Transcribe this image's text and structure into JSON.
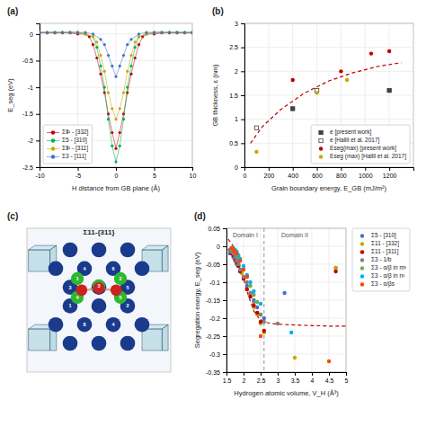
{
  "chart_data": [
    {
      "type": "line",
      "title": "(a)",
      "xlabel": "H distance from GB plane (Å)",
      "ylabel": "E_seg (eV)",
      "xlim": [
        -10,
        10
      ],
      "ylim": [
        -2.5,
        0.2
      ],
      "xticks": [
        -10,
        -5,
        0,
        5,
        10
      ],
      "yticks": [
        -2.5,
        -2,
        -1.5,
        -1,
        -0.5,
        0
      ],
      "grid": true,
      "legend": "lower left",
      "series": [
        {
          "name": "ΣⅡ¹ - [332]",
          "color": "#c00000",
          "marker": "circle",
          "x": [
            -10,
            -9,
            -8,
            -7,
            -6,
            -5,
            -4,
            -3.5,
            -3,
            -2.5,
            -2,
            -1.5,
            -1,
            -0.5,
            0,
            0.5,
            1,
            1.5,
            2,
            2.5,
            3,
            3.5,
            4,
            5,
            6,
            7,
            8,
            9,
            10
          ],
          "values": [
            0.02,
            0.02,
            0.02,
            0.02,
            0.02,
            0.0,
            0.0,
            -0.05,
            -0.2,
            -0.45,
            -0.75,
            -1.1,
            -1.5,
            -1.85,
            -2.15,
            -1.85,
            -1.5,
            -1.1,
            -0.75,
            -0.45,
            -0.2,
            -0.05,
            0.0,
            0.0,
            0.02,
            0.02,
            0.02,
            0.02,
            0.02
          ]
        },
        {
          "name": "Σ5 - [310]",
          "color": "#00b050",
          "marker": "circle",
          "x": [
            -10,
            -9,
            -8,
            -7,
            -6,
            -5,
            -4,
            -3,
            -2.5,
            -2,
            -1.5,
            -1,
            -0.5,
            0,
            0.5,
            1,
            1.5,
            2,
            2.5,
            3,
            4,
            5,
            6,
            7,
            8,
            9,
            10
          ],
          "values": [
            0.03,
            0.03,
            0.03,
            0.03,
            0.03,
            0.03,
            0.0,
            -0.05,
            -0.25,
            -0.6,
            -1.0,
            -1.6,
            -2.1,
            -2.4,
            -2.1,
            -1.6,
            -1.0,
            -0.6,
            -0.25,
            -0.05,
            0.0,
            0.03,
            0.03,
            0.03,
            0.03,
            0.03,
            0.03
          ]
        },
        {
          "name": "ΣⅡ¹ - [311]",
          "color": "#c8a800",
          "marker": "circle",
          "x": [
            -10,
            -9,
            -8,
            -7,
            -6,
            -5,
            -4,
            -3,
            -2.5,
            -2,
            -1.5,
            -1,
            -0.5,
            0,
            0.5,
            1,
            1.5,
            2,
            2.5,
            3,
            4,
            5,
            6,
            7,
            8,
            9,
            10
          ],
          "values": [
            0.03,
            0.03,
            0.03,
            0.03,
            0.03,
            0.03,
            0.0,
            -0.05,
            -0.15,
            -0.4,
            -0.7,
            -1.1,
            -1.4,
            -1.6,
            -1.4,
            -1.1,
            -0.7,
            -0.4,
            -0.15,
            -0.05,
            0.0,
            0.03,
            0.03,
            0.03,
            0.03,
            0.03,
            0.03
          ]
        },
        {
          "name": "Σ3 - [111]",
          "color": "#4472c4",
          "marker": "circle",
          "x": [
            -10,
            -9,
            -8,
            -7,
            -6,
            -5,
            -4,
            -3,
            -2,
            -1.5,
            -1,
            -0.5,
            0,
            0.5,
            1,
            1.5,
            2,
            3,
            4,
            5,
            6,
            7,
            8,
            9,
            10
          ],
          "values": [
            0.03,
            0.03,
            0.03,
            0.03,
            0.03,
            0.03,
            0.03,
            0.0,
            -0.1,
            -0.2,
            -0.4,
            -0.6,
            -0.8,
            -0.6,
            -0.4,
            -0.2,
            -0.1,
            0.0,
            0.03,
            0.03,
            0.03,
            0.03,
            0.03,
            0.03,
            0.03
          ]
        }
      ]
    },
    {
      "type": "scatter",
      "title": "(b)",
      "xlabel": "Grain boundary energy, E_GB (mJ/m²)",
      "ylabel": "GB thickness, ε (nm)",
      "xlim": [
        0,
        1400
      ],
      "ylim": [
        0,
        3
      ],
      "xticks": [
        0,
        200,
        400,
        600,
        800,
        1000,
        1200
      ],
      "yticks": [
        0,
        0.5,
        1,
        1.5,
        2,
        2.5,
        3
      ],
      "grid": true,
      "legend": "lower right",
      "series": [
        {
          "type": "line",
          "color": "#c00000",
          "line_style": "dashed",
          "x": [
            50,
            150,
            300,
            500,
            700,
            900,
            1100,
            1300
          ],
          "values": [
            0.5,
            0.85,
            1.2,
            1.55,
            1.8,
            1.97,
            2.1,
            2.18
          ]
        },
        {
          "name": "e [present work]",
          "color": "#404040",
          "marker": "square",
          "x": [
            400,
            1200
          ],
          "values": [
            1.22,
            1.6
          ]
        },
        {
          "name": "e [Hallil et al. 2017]",
          "color": "#404040",
          "marker": "square-open",
          "x": [
            100,
            600
          ],
          "values": [
            0.82,
            1.6
          ]
        },
        {
          "name": "Eseg(max) [present work]",
          "color": "#c00000",
          "marker": "circle",
          "x": [
            400,
            800,
            1050,
            1200
          ],
          "values": [
            1.82,
            2.0,
            2.37,
            2.42
          ]
        },
        {
          "name": "Eseg (max) [Hallil et al. 2017]",
          "color": "#c8a800",
          "marker": "circle",
          "x": [
            100,
            600,
            850
          ],
          "values": [
            0.32,
            1.55,
            1.82
          ]
        }
      ]
    },
    {
      "type": "diagram",
      "title": "(c)",
      "subtitle": "Σ11-{311}",
      "colors": [
        "#1a3a8c",
        "#2db82d",
        "#cc2222"
      ],
      "annotations": [
        "1",
        "2",
        "3",
        "4",
        "5",
        "4",
        "6",
        "3",
        "5",
        "1",
        "2",
        "8",
        "4"
      ]
    },
    {
      "type": "scatter",
      "title": "(d)",
      "xlabel": "Hydrogen atomic volume, V_H (Å³)",
      "ylabel": "Segregation energy, E_seg (eV)",
      "xlim": [
        1.5,
        5
      ],
      "ylim": [
        -0.35,
        0.05
      ],
      "xticks": [
        1.5,
        2,
        2.5,
        3,
        3.5,
        4,
        4.5,
        5
      ],
      "yticks": [
        -0.35,
        -0.3,
        -0.25,
        -0.2,
        -0.15,
        -0.1,
        -0.05,
        0,
        0.05
      ],
      "grid": true,
      "legend": "right",
      "vlines": [
        2.6
      ],
      "annotations": [
        {
          "text": "Domain I",
          "x": 2.05,
          "y": 0.04
        },
        {
          "text": "Domain II",
          "x": 3.5,
          "y": 0.04
        }
      ],
      "series": [
        {
          "type": "line",
          "color": "#c00000",
          "line_style": "dashed",
          "x": [
            1.55,
            1.7,
            1.85,
            2.0,
            2.15,
            2.3,
            2.45,
            2.6,
            2.8,
            3.2,
            3.8,
            4.5,
            5.0
          ],
          "values": [
            0.02,
            0.0,
            -0.04,
            -0.09,
            -0.14,
            -0.18,
            -0.2,
            -0.21,
            -0.215,
            -0.218,
            -0.22,
            -0.222,
            -0.222
          ]
        },
        {
          "name": "Σ5 - [310]",
          "color": "#4472c4",
          "marker": "circle",
          "x": [
            1.6,
            1.7,
            1.75,
            1.8,
            1.85,
            1.9,
            2.0,
            2.1,
            2.2,
            2.3,
            2.4,
            2.5,
            2.6,
            3.2,
            4.7
          ],
          "values": [
            -0.02,
            -0.03,
            -0.04,
            -0.05,
            -0.055,
            -0.07,
            -0.09,
            -0.11,
            -0.13,
            -0.15,
            -0.17,
            -0.19,
            -0.2,
            -0.13,
            -0.06
          ]
        },
        {
          "name": "Σ11 - [332]",
          "color": "#c8a800",
          "marker": "circle",
          "x": [
            1.6,
            1.65,
            1.7,
            1.75,
            1.8,
            1.85,
            1.9,
            1.95,
            2.0,
            2.1,
            2.2,
            2.3,
            2.4,
            2.5,
            2.6,
            3.5,
            4.7
          ],
          "values": [
            -0.01,
            -0.015,
            -0.02,
            -0.03,
            -0.04,
            -0.05,
            -0.065,
            -0.075,
            -0.09,
            -0.12,
            -0.14,
            -0.17,
            -0.19,
            -0.215,
            -0.24,
            -0.31,
            -0.06
          ]
        },
        {
          "name": "Σ11 - [311]",
          "color": "#c00000",
          "marker": "circle",
          "x": [
            1.6,
            1.65,
            1.7,
            1.75,
            1.8,
            1.85,
            1.9,
            2.0,
            2.1,
            2.2,
            2.3,
            2.4,
            2.5,
            2.6,
            4.7
          ],
          "values": [
            -0.01,
            -0.02,
            -0.025,
            -0.035,
            -0.045,
            -0.055,
            -0.07,
            -0.09,
            -0.12,
            -0.14,
            -0.165,
            -0.185,
            -0.21,
            -0.235,
            -0.07
          ]
        },
        {
          "name": "Σ3 - 1/b",
          "color": "#808080",
          "marker": "circle",
          "x": [
            1.6,
            1.65,
            1.7,
            1.75,
            1.8,
            1.85,
            1.9,
            2.0,
            2.1,
            2.2,
            2.3,
            2.5,
            2.6,
            3.0
          ],
          "values": [
            -0.01,
            -0.015,
            -0.02,
            -0.03,
            -0.04,
            -0.05,
            -0.065,
            -0.085,
            -0.1,
            -0.13,
            -0.155,
            -0.19,
            -0.21,
            -0.215
          ]
        },
        {
          "name": "Σ3 - α/β in m³",
          "color": "#70ad47",
          "marker": "circle",
          "x": [
            1.65,
            1.7,
            1.75,
            1.8,
            1.85,
            1.9,
            2.0,
            2.1,
            2.2,
            2.3,
            2.4
          ],
          "values": [
            -0.005,
            -0.01,
            -0.015,
            -0.02,
            -0.03,
            -0.04,
            -0.065,
            -0.085,
            -0.11,
            -0.135,
            -0.155
          ]
        },
        {
          "name": "Σ3 - α/β in n³",
          "color": "#00b0f0",
          "marker": "circle",
          "x": [
            1.7,
            1.75,
            1.8,
            1.85,
            1.9,
            2.0,
            2.1,
            2.2,
            2.3,
            2.5,
            3.4
          ],
          "values": [
            -0.005,
            -0.01,
            -0.015,
            -0.025,
            -0.035,
            -0.055,
            -0.08,
            -0.1,
            -0.125,
            -0.16,
            -0.24
          ]
        },
        {
          "name": "Σ3 - α/βs",
          "color": "#ff4500",
          "marker": "circle",
          "x": [
            1.65,
            1.7,
            1.75,
            1.8,
            1.9,
            2.0,
            2.1,
            2.5,
            4.5
          ],
          "values": [
            -0.005,
            -0.01,
            -0.015,
            -0.02,
            -0.04,
            -0.065,
            -0.085,
            -0.25,
            -0.32
          ]
        }
      ]
    }
  ]
}
